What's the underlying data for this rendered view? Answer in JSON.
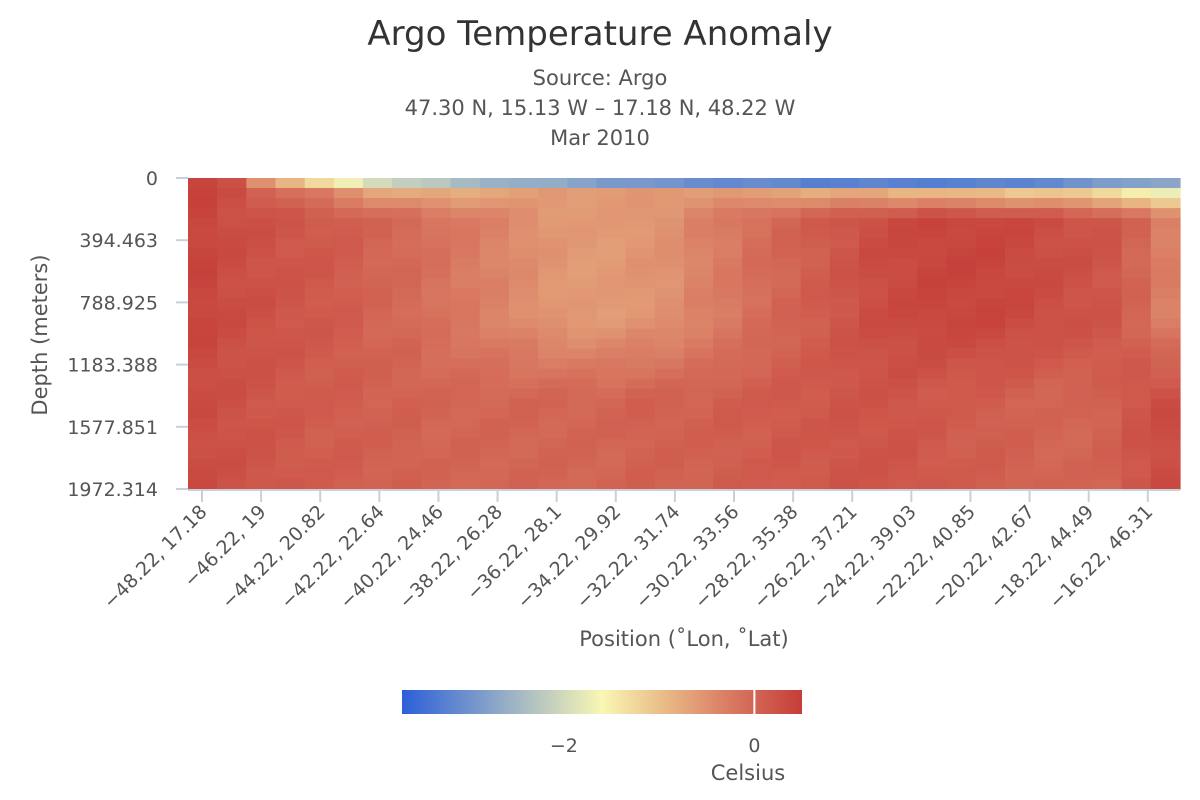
{
  "chart_data": {
    "type": "heatmap",
    "title": "Argo Temperature Anomaly",
    "subtitle": [
      "Source: Argo",
      "47.30 N, 15.13 W – 17.18 N, 48.22 W",
      "Mar 2010"
    ],
    "xlabel": "Position (˚Lon, ˚Lat)",
    "ylabel": "Depth (meters)",
    "y_axis_reversed": true,
    "ylim": [
      0,
      1972.314
    ],
    "y_ticks": [
      0,
      394.463,
      788.925,
      1183.388,
      1577.851,
      1972.314
    ],
    "y_tick_labels": [
      "0",
      "394.463",
      "788.925",
      "1183.388",
      "1577.851",
      "1972.314"
    ],
    "x_tick_labels": [
      "-48.22, 17.18",
      "-46.22, 19",
      "-44.22, 20.82",
      "-42.22, 22.64",
      "-40.22, 24.46",
      "-38.22, 26.28",
      "-36.22, 28.1",
      "-34.22, 29.92",
      "-32.22, 31.74",
      "-30.22, 33.56",
      "-28.22, 35.38",
      "-26.22, 37.21",
      "-24.22, 39.03",
      "-22.22, 40.85",
      "-20.22, 42.67",
      "-18.22, 44.49",
      "-16.22, 46.31"
    ],
    "x_lon_range": [
      -48.22,
      -15.13
    ],
    "color_scale": {
      "stops": [
        "#2b5fd9",
        "#f9f7b4",
        "#e9b985",
        "#d97a63",
        "#c53d38"
      ],
      "range": [
        -3.7,
        0.5
      ],
      "ticks": [
        -2,
        0
      ],
      "tick_labels": [
        "−2",
        "0"
      ],
      "label": "Celsius",
      "marker_value": 0
    },
    "surface_anomaly": [
      0.4,
      0.2,
      -0.6,
      -1.0,
      -1.5,
      -2.0,
      -2.2,
      -2.4,
      -2.6,
      -2.8,
      -2.9,
      -3.0,
      -3.1,
      -3.2,
      -3.3,
      -3.4,
      -3.5,
      -3.55,
      -3.6,
      -3.6,
      -3.65,
      -3.7,
      -3.7,
      -3.7,
      -3.7,
      -3.7,
      -3.7,
      -3.65,
      -3.6,
      -3.5,
      -3.4,
      -3.2,
      -3.0,
      -2.9
    ],
    "thermocline_anomaly": [
      0.4,
      0.3,
      0.1,
      -0.1,
      -0.3,
      -0.5,
      -0.7,
      -0.8,
      -0.8,
      -0.8,
      -0.7,
      -0.7,
      -0.6,
      -0.6,
      -0.6,
      -0.6,
      -0.6,
      -0.6,
      -0.6,
      -0.7,
      -0.7,
      -0.8,
      -0.8,
      -0.8,
      -0.9,
      -0.9,
      -1.0,
      -1.0,
      -1.1,
      -1.1,
      -1.2,
      -1.3,
      -1.5,
      -1.8
    ],
    "mid_anomaly": [
      0.4,
      0.3,
      0.25,
      0.2,
      0.15,
      0.1,
      0.0,
      -0.05,
      -0.15,
      -0.25,
      -0.35,
      -0.45,
      -0.55,
      -0.6,
      -0.6,
      -0.55,
      -0.5,
      -0.35,
      -0.25,
      -0.1,
      0.0,
      0.1,
      0.2,
      0.3,
      0.35,
      0.4,
      0.4,
      0.4,
      0.35,
      0.3,
      0.25,
      0.2,
      0.0,
      -0.3
    ],
    "deep_anomaly": [
      0.3,
      0.25,
      0.2,
      0.15,
      0.1,
      0.1,
      0.05,
      0.05,
      0.0,
      0.0,
      0.0,
      0.0,
      0.0,
      0.0,
      0.0,
      0.05,
      0.05,
      0.05,
      0.1,
      0.1,
      0.15,
      0.15,
      0.2,
      0.2,
      0.2,
      0.15,
      0.1,
      0.1,
      0.05,
      0.0,
      0.0,
      0.05,
      0.2,
      0.3
    ]
  }
}
